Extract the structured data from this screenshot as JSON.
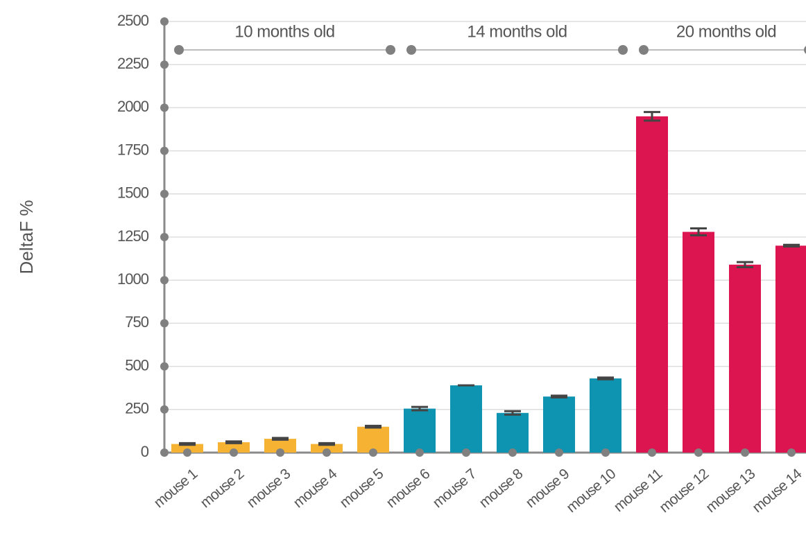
{
  "chart_data": {
    "type": "bar",
    "y_label": "DeltaF %",
    "categories": [
      "mouse 1",
      "mouse 2",
      "mouse 3",
      "mouse 4",
      "mouse 5",
      "mouse 6",
      "mouse 7",
      "mouse 8",
      "mouse 9",
      "mouse 10",
      "mouse 11",
      "mouse 12",
      "mouse 13",
      "mouse 14"
    ],
    "values": [
      50,
      60,
      80,
      50,
      150,
      255,
      390,
      230,
      325,
      430,
      1950,
      1280,
      1090,
      1200
    ],
    "errors": [
      5,
      5,
      5,
      5,
      5,
      10,
      0,
      10,
      5,
      5,
      25,
      20,
      15,
      5
    ],
    "colors": [
      "#f6b333",
      "#f6b333",
      "#f6b333",
      "#f6b333",
      "#f6b333",
      "#0e93b0",
      "#0e93b0",
      "#0e93b0",
      "#0e93b0",
      "#0e93b0",
      "#dc1450",
      "#dc1450",
      "#dc1450",
      "#dc1450"
    ],
    "groups": [
      {
        "label": "10 months old",
        "color": "#f6b333"
      },
      {
        "label": "14 months old",
        "color": "#0e93b0"
      },
      {
        "label": "20 months old",
        "color": "#dc1450"
      }
    ],
    "ylim": [
      0,
      2500
    ],
    "yticks": [
      0,
      250,
      500,
      750,
      1000,
      1250,
      1500,
      1750,
      2000,
      2250,
      2500
    ],
    "grid": true
  }
}
